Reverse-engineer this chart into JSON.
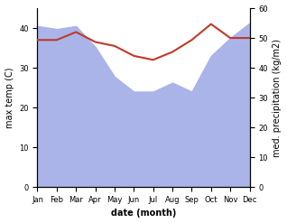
{
  "months": [
    "Jan",
    "Feb",
    "Mar",
    "Apr",
    "May",
    "Jun",
    "Jul",
    "Aug",
    "Sep",
    "Oct",
    "Nov",
    "Dec"
  ],
  "precipitation": [
    54,
    53,
    54,
    47,
    37,
    32,
    32,
    35,
    32,
    44,
    50,
    55
  ],
  "max_temp": [
    37.0,
    37.0,
    39.0,
    36.5,
    35.5,
    33.0,
    32.0,
    34.0,
    37.0,
    41.0,
    37.5,
    37.5
  ],
  "precip_color": "#aab4e8",
  "temp_color": "#c0392b",
  "ylabel_left": "max temp (C)",
  "ylabel_right": "med. precipitation (kg/m2)",
  "xlabel": "date (month)",
  "ylim_left": [
    0,
    45
  ],
  "ylim_right": [
    0,
    60
  ],
  "yticks_left": [
    0,
    10,
    20,
    30,
    40
  ],
  "yticks_right": [
    0,
    10,
    20,
    30,
    40,
    50,
    60
  ]
}
